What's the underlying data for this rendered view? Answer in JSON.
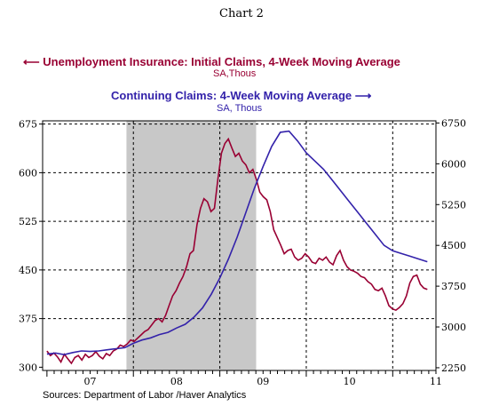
{
  "title": "Chart 2",
  "source": "Sources:  Department of Labor /Haver Analytics",
  "legend": {
    "initial": {
      "label": "Unemployment Insurance: Initial Claims, 4-Week Moving Average",
      "units": "SA,Thous",
      "arrow": "⟵"
    },
    "continuing": {
      "label": "Continuing Claims: 4-Week Moving Average",
      "units": "SA, Thous",
      "arrow": "⟶"
    }
  },
  "colors": {
    "initial": "#990033",
    "continuing": "#3322aa",
    "recession": "#c8c8c8"
  },
  "chart_data": {
    "type": "line",
    "title": "Chart 2",
    "x_tick_labels": [
      "07",
      "08",
      "09",
      "10",
      "11"
    ],
    "x_tick_positions": [
      2007.5,
      2008.5,
      2009.5,
      2010.5,
      2011.5
    ],
    "xlim": [
      2006.95,
      2011.5
    ],
    "recession_shading": [
      2007.92,
      2009.42
    ],
    "grid": true,
    "left_axis": {
      "ylim": [
        295,
        680
      ],
      "ticks": [
        300,
        375,
        450,
        525,
        600,
        675
      ]
    },
    "right_axis": {
      "ylim": [
        2200,
        6790
      ],
      "ticks": [
        2250,
        3000,
        3750,
        4500,
        5250,
        6000,
        6750
      ]
    },
    "series": [
      {
        "name": "Unemployment Insurance: Initial Claims, 4-Week Moving Average",
        "axis": "left",
        "x": [
          2007.0,
          2007.05,
          2007.1,
          2007.15,
          2007.2,
          2007.25,
          2007.3,
          2007.35,
          2007.4,
          2007.45,
          2007.5,
          2007.55,
          2007.6,
          2007.65,
          2007.7,
          2007.75,
          2007.8,
          2007.85,
          2007.9,
          2007.95,
          2008.0,
          2008.05,
          2008.1,
          2008.15,
          2008.2,
          2008.25,
          2008.3,
          2008.35,
          2008.4,
          2008.45,
          2008.5,
          2008.55,
          2008.6,
          2008.65,
          2008.7,
          2008.75,
          2008.8,
          2008.85,
          2008.9,
          2008.95,
          2009.0,
          2009.05,
          2009.1,
          2009.15,
          2009.2,
          2009.25,
          2009.3,
          2009.35,
          2009.4,
          2009.45,
          2009.5,
          2009.55,
          2009.6,
          2009.65,
          2009.7,
          2009.75,
          2009.8,
          2009.85,
          2009.9,
          2009.95,
          2010.0,
          2010.05,
          2010.1,
          2010.15,
          2010.2,
          2010.25,
          2010.3,
          2010.35,
          2010.4,
          2010.45,
          2010.5,
          2010.55,
          2010.6,
          2010.65,
          2010.7,
          2010.75,
          2010.8,
          2010.85,
          2010.9,
          2010.95,
          2011.0,
          2011.05,
          2011.1,
          2011.15,
          2011.2,
          2011.25,
          2011.3,
          2011.35,
          2011.4
        ],
        "values": [
          325,
          318,
          322,
          316,
          308,
          320,
          313,
          306,
          315,
          318,
          311,
          320,
          315,
          318,
          324,
          317,
          313,
          321,
          318,
          325,
          328,
          334,
          332,
          336,
          342,
          340,
          345,
          350,
          355,
          358,
          365,
          372,
          375,
          370,
          380,
          395,
          410,
          418,
          430,
          440,
          455,
          475,
          480,
          520,
          545,
          560,
          555,
          540,
          545,
          590,
          630,
          645,
          652,
          638,
          625,
          630,
          618,
          612,
          600,
          605,
          590,
          570,
          563,
          558,
          540,
          512,
          500,
          488,
          475,
          480,
          482,
          470,
          465,
          468,
          475,
          470,
          462,
          460,
          468,
          465,
          470,
          462,
          458,
          472,
          480,
          465,
          455,
          450,
          448
        ],
        "note_x_after_2010": [
          2010.45,
          2010.5,
          2010.55,
          2010.6,
          2010.65,
          2010.7,
          2010.75,
          2010.8,
          2010.85,
          2010.9,
          2010.95,
          2011.0,
          2011.05,
          2011.1,
          2011.15,
          2011.2,
          2011.25,
          2011.3,
          2011.35
        ],
        "tail_x": [
          2011.45,
          2011.5,
          2011.55,
          2011.6,
          2011.65,
          2011.7,
          2011.75,
          2011.8,
          2011.85,
          2011.9,
          2011.95,
          2012.0,
          2012.05,
          2012.1,
          2012.15,
          2012.2,
          2012.25,
          2012.3,
          2012.35,
          2012.4,
          2012.45
        ],
        "tail_values": [
          445,
          440,
          438,
          432,
          428,
          420,
          418,
          422,
          410,
          395,
          390,
          388,
          392,
          398,
          410,
          430,
          440,
          442,
          428,
          422,
          420
        ]
      },
      {
        "name": "Continuing Claims: 4-Week Moving Average",
        "axis": "right",
        "x": [
          2007.0,
          2007.1,
          2007.2,
          2007.3,
          2007.4,
          2007.5,
          2007.6,
          2007.7,
          2007.8,
          2007.9,
          2008.0,
          2008.1,
          2008.2,
          2008.3,
          2008.4,
          2008.5,
          2008.6,
          2008.7,
          2008.8,
          2008.9,
          2009.0,
          2009.1,
          2009.2,
          2009.3,
          2009.4,
          2009.5,
          2009.6,
          2009.7,
          2009.8,
          2009.9,
          2010.0,
          2010.1,
          2010.2,
          2010.3,
          2010.4,
          2010.5,
          2010.6,
          2010.7,
          2010.8,
          2010.9,
          2011.0,
          2011.1,
          2011.2,
          2011.3,
          2011.4
        ],
        "values": [
          2500,
          2520,
          2490,
          2530,
          2560,
          2550,
          2560,
          2580,
          2600,
          2620,
          2700,
          2760,
          2800,
          2860,
          2900,
          2980,
          3050,
          3180,
          3350,
          3600,
          3900,
          4250,
          4650,
          5100,
          5550,
          5950,
          6320,
          6580,
          6600,
          6420,
          6200,
          6050,
          5900,
          5700,
          5500,
          5300,
          5100,
          4900,
          4700,
          4500,
          4400,
          4350,
          4300,
          4250,
          4200
        ]
      }
    ]
  }
}
